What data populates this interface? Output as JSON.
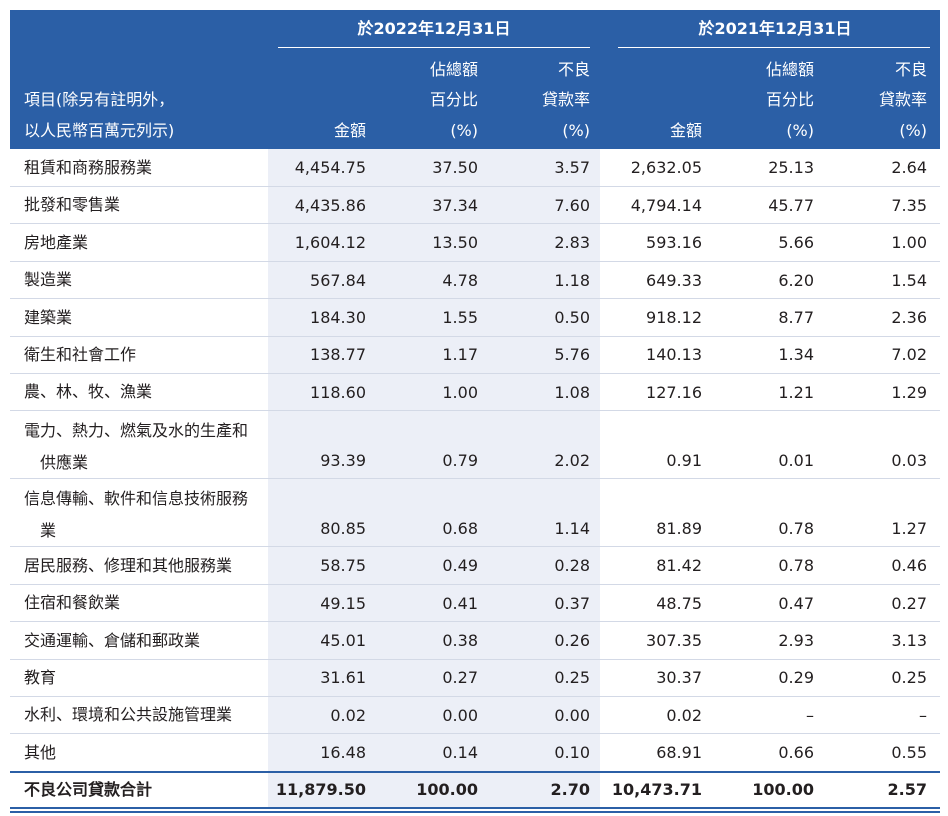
{
  "header": {
    "group_2022": "於2022年12月31日",
    "group_2021": "於2021年12月31日",
    "item_label": [
      "項目(除另有註明外，",
      "以人民幣百萬元列示)"
    ],
    "columns": [
      [
        "金額"
      ],
      [
        "佔總額",
        "百分比",
        "(%)"
      ],
      [
        "不良",
        "貸款率",
        "(%)"
      ],
      [
        "金額"
      ],
      [
        "佔總額",
        "百分比",
        "(%)"
      ],
      [
        "不良",
        "貸款率",
        "(%)"
      ]
    ]
  },
  "rows": [
    {
      "label": [
        "租賃和商務服務業"
      ],
      "values": [
        "4,454.75",
        "37.50",
        "3.57",
        "2,632.05",
        "25.13",
        "2.64"
      ]
    },
    {
      "label": [
        "批發和零售業"
      ],
      "values": [
        "4,435.86",
        "37.34",
        "7.60",
        "4,794.14",
        "45.77",
        "7.35"
      ]
    },
    {
      "label": [
        "房地產業"
      ],
      "values": [
        "1,604.12",
        "13.50",
        "2.83",
        "593.16",
        "5.66",
        "1.00"
      ]
    },
    {
      "label": [
        "製造業"
      ],
      "values": [
        "567.84",
        "4.78",
        "1.18",
        "649.33",
        "6.20",
        "1.54"
      ]
    },
    {
      "label": [
        "建築業"
      ],
      "values": [
        "184.30",
        "1.55",
        "0.50",
        "918.12",
        "8.77",
        "2.36"
      ]
    },
    {
      "label": [
        "衛生和社會工作"
      ],
      "values": [
        "138.77",
        "1.17",
        "5.76",
        "140.13",
        "1.34",
        "7.02"
      ]
    },
    {
      "label": [
        "農、林、牧、漁業"
      ],
      "values": [
        "118.60",
        "1.00",
        "1.08",
        "127.16",
        "1.21",
        "1.29"
      ]
    },
    {
      "label": [
        "電力、熱力、燃氣及水的生產和",
        "供應業"
      ],
      "values": [
        "93.39",
        "0.79",
        "2.02",
        "0.91",
        "0.01",
        "0.03"
      ]
    },
    {
      "label": [
        "信息傳輸、軟件和信息技術服務",
        "業"
      ],
      "values": [
        "80.85",
        "0.68",
        "1.14",
        "81.89",
        "0.78",
        "1.27"
      ]
    },
    {
      "label": [
        "居民服務、修理和其他服務業"
      ],
      "values": [
        "58.75",
        "0.49",
        "0.28",
        "81.42",
        "0.78",
        "0.46"
      ]
    },
    {
      "label": [
        "住宿和餐飲業"
      ],
      "values": [
        "49.15",
        "0.41",
        "0.37",
        "48.75",
        "0.47",
        "0.27"
      ]
    },
    {
      "label": [
        "交通運輸、倉儲和郵政業"
      ],
      "values": [
        "45.01",
        "0.38",
        "0.26",
        "307.35",
        "2.93",
        "3.13"
      ]
    },
    {
      "label": [
        "教育"
      ],
      "values": [
        "31.61",
        "0.27",
        "0.25",
        "30.37",
        "0.29",
        "0.25"
      ]
    },
    {
      "label": [
        "水利、環境和公共設施管理業"
      ],
      "values": [
        "0.02",
        "0.00",
        "0.00",
        "0.02",
        "–",
        "–"
      ]
    },
    {
      "label": [
        "其他"
      ],
      "values": [
        "16.48",
        "0.14",
        "0.10",
        "68.91",
        "0.66",
        "0.55"
      ]
    }
  ],
  "total": {
    "label": "不良公司貸款合計",
    "values": [
      "11,879.50",
      "100.00",
      "2.70",
      "10,473.71",
      "100.00",
      "2.57"
    ]
  }
}
